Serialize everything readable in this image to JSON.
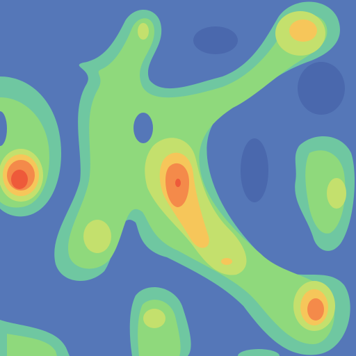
{
  "colors": {
    "background": "#5577b8",
    "deep_basin": "#4a68ad",
    "level1": "#6fc7a1",
    "level2": "#8fd97c",
    "level3": "#c4e06d",
    "level4": "#f6c65a",
    "level5": "#f48a4a",
    "level6": "#ee5a3a"
  }
}
